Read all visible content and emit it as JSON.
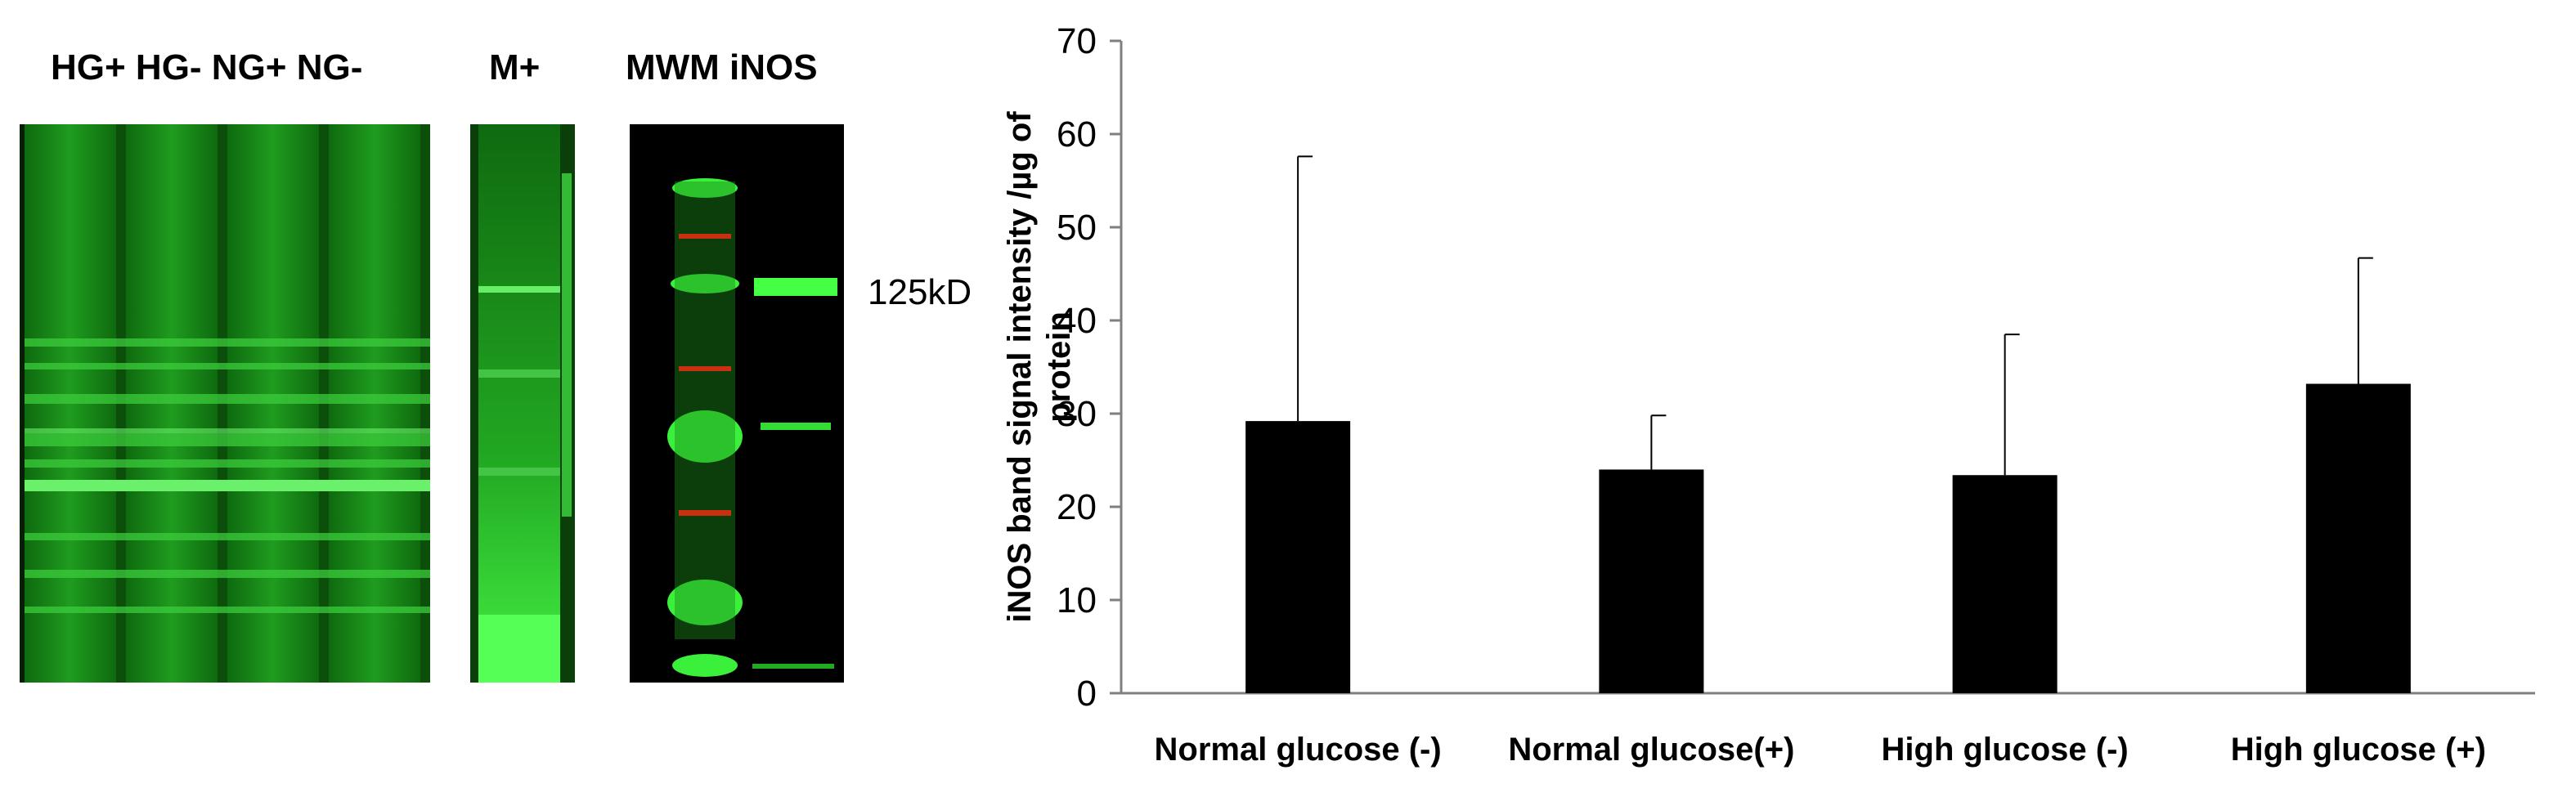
{
  "blot": {
    "lane_labels_main": "HG+ HG- NG+ NG-",
    "lane_label_m": "M+",
    "lane_labels_mwm": "MWM iNOS",
    "size_marker": "125kD",
    "colors": {
      "background": "#000000",
      "signal": "#22e022",
      "marker": "#c83010"
    }
  },
  "chart_data": {
    "type": "bar",
    "categories": [
      "Normal glucose (-)",
      "Normal glucose(+)",
      "High glucose (-)",
      "High glucose (+)"
    ],
    "values": [
      29.2,
      24.0,
      23.4,
      33.2
    ],
    "error_upper": [
      57.6,
      29.8,
      38.5,
      46.7
    ],
    "ylabel_lines": [
      "iNOS band signal intensity /µg of",
      "protein"
    ],
    "ylim": [
      0,
      70
    ],
    "yticks": [
      0,
      10,
      20,
      30,
      40,
      50,
      60,
      70
    ],
    "bar_color": "#000000",
    "grid": false
  }
}
